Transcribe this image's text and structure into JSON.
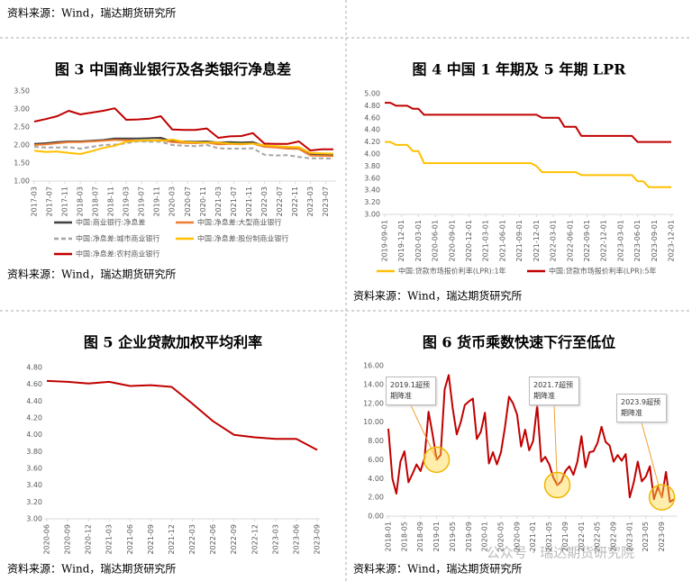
{
  "header_source": "资料来源：Wind，瑞达期货研究所",
  "watermark": "公众号 · 瑞达期货研究院",
  "chart_data": [
    {
      "type": "line",
      "title": "图 3 中国商业银行及各类银行净息差",
      "source": "资料来源：Wind，瑞达期货研究所",
      "x": [
        "2017-03",
        "2017-06",
        "2017-09",
        "2017-12",
        "2018-03",
        "2018-06",
        "2018-09",
        "2018-12",
        "2019-03",
        "2019-06",
        "2019-09",
        "2019-12",
        "2020-03",
        "2020-06",
        "2020-09",
        "2020-12",
        "2021-03",
        "2021-06",
        "2021-09",
        "2021-12",
        "2022-03",
        "2022-06",
        "2022-09",
        "2022-12",
        "2023-03",
        "2023-06",
        "2023-09"
      ],
      "xticks": [
        "2017-03",
        "2017-07",
        "2017-11",
        "2018-03",
        "2018-07",
        "2018-11",
        "2019-03",
        "2019-07",
        "2019-11",
        "2020-03",
        "2020-07",
        "2020-11",
        "2021-03",
        "2021-07",
        "2021-11",
        "2022-03",
        "2022-07",
        "2022-11",
        "2023-03",
        "2023-07"
      ],
      "ylim": [
        1.0,
        3.5
      ],
      "yticks": [
        {
          "value": 1.0,
          "label": "1.00"
        },
        {
          "value": 1.5,
          "label": "1.50"
        },
        {
          "value": 2.0,
          "label": "2.00"
        },
        {
          "value": 2.5,
          "label": "2.50"
        },
        {
          "value": 3.0,
          "label": "3.00"
        },
        {
          "value": 3.5,
          "label": "3.50"
        }
      ],
      "grid": false,
      "series": [
        {
          "name": "中国:商业银行:净息差",
          "color": "#404040",
          "dashed": false,
          "values": [
            2.03,
            2.05,
            2.08,
            2.1,
            2.1,
            2.12,
            2.14,
            2.18,
            2.18,
            2.18,
            2.19,
            2.2,
            2.1,
            2.1,
            2.09,
            2.1,
            2.07,
            2.08,
            2.07,
            2.08,
            1.97,
            1.94,
            1.91,
            1.91,
            1.74,
            1.74,
            1.73
          ]
        },
        {
          "name": "中国:净息差:大型商业银行",
          "color": "#ed7d31",
          "dashed": false,
          "values": [
            2.0,
            2.02,
            2.05,
            2.08,
            2.08,
            2.1,
            2.12,
            2.14,
            2.13,
            2.12,
            2.12,
            2.14,
            2.08,
            2.06,
            2.05,
            2.07,
            2.02,
            2.03,
            2.02,
            2.04,
            1.95,
            1.93,
            1.9,
            1.89,
            1.71,
            1.7,
            1.69
          ]
        },
        {
          "name": "中国:净息差:城市商业银行",
          "color": "#a5a5a5",
          "dashed": true,
          "values": [
            1.95,
            1.93,
            1.93,
            1.94,
            1.9,
            1.95,
            2.0,
            2.01,
            2.05,
            2.1,
            2.09,
            2.09,
            2.0,
            1.98,
            1.97,
            2.0,
            1.91,
            1.9,
            1.9,
            1.91,
            1.73,
            1.71,
            1.72,
            1.67,
            1.63,
            1.63,
            1.62
          ]
        },
        {
          "name": "中国:净息差:股份制商业银行",
          "color": "#ffc000",
          "dashed": false,
          "values": [
            1.84,
            1.81,
            1.82,
            1.78,
            1.75,
            1.83,
            1.92,
            1.98,
            2.09,
            2.12,
            2.13,
            2.12,
            2.15,
            2.09,
            2.07,
            2.07,
            2.07,
            2.04,
            2.03,
            2.04,
            1.99,
            1.97,
            1.95,
            1.94,
            1.78,
            1.77,
            1.76
          ]
        },
        {
          "name": "中国:净息差:农村商业银行",
          "color": "#c00000",
          "dashed": false,
          "values": [
            2.65,
            2.72,
            2.8,
            2.95,
            2.85,
            2.9,
            2.95,
            3.02,
            2.7,
            2.71,
            2.73,
            2.8,
            2.43,
            2.42,
            2.42,
            2.46,
            2.2,
            2.24,
            2.25,
            2.33,
            2.04,
            2.03,
            2.03,
            2.1,
            1.85,
            1.88,
            1.88
          ]
        }
      ]
    },
    {
      "type": "line",
      "title": "图 4 中国 1 年期及 5 年期 LPR",
      "source": "资料来源：Wind，瑞达期货研究所",
      "x": [
        "2019-09-01",
        "2019-10-01",
        "2019-11-01",
        "2019-12-01",
        "2020-01-01",
        "2020-02-01",
        "2020-03-01",
        "2020-04-01",
        "2020-05-01",
        "2020-06-01",
        "2020-07-01",
        "2020-08-01",
        "2020-09-01",
        "2020-10-01",
        "2020-11-01",
        "2020-12-01",
        "2021-01-01",
        "2021-02-01",
        "2021-03-01",
        "2021-04-01",
        "2021-05-01",
        "2021-06-01",
        "2021-07-01",
        "2021-08-01",
        "2021-09-01",
        "2021-10-01",
        "2021-11-01",
        "2021-12-01",
        "2022-01-01",
        "2022-02-01",
        "2022-03-01",
        "2022-04-01",
        "2022-05-01",
        "2022-06-01",
        "2022-07-01",
        "2022-08-01",
        "2022-09-01",
        "2022-10-01",
        "2022-11-01",
        "2022-12-01",
        "2023-01-01",
        "2023-02-01",
        "2023-03-01",
        "2023-04-01",
        "2023-05-01",
        "2023-06-01",
        "2023-07-01",
        "2023-08-01",
        "2023-09-01",
        "2023-10-01",
        "2023-11-01",
        "2023-12-01"
      ],
      "xticks": [
        "2019-09-01",
        "2019-12-01",
        "2020-03-01",
        "2020-06-01",
        "2020-09-01",
        "2020-12-01",
        "2021-03-01",
        "2021-06-01",
        "2021-09-01",
        "2021-12-01",
        "2022-03-01",
        "2022-06-01",
        "2022-09-01",
        "2022-12-01",
        "2023-03-01",
        "2023-06-01",
        "2023-09-01",
        "2023-12-01"
      ],
      "ylim": [
        3.0,
        5.0
      ],
      "yticks": [
        {
          "value": 3.0,
          "label": "3.00"
        },
        {
          "value": 3.2,
          "label": "3.20"
        },
        {
          "value": 3.4,
          "label": "3.40"
        },
        {
          "value": 3.6,
          "label": "3.60"
        },
        {
          "value": 3.8,
          "label": "3.80"
        },
        {
          "value": 4.0,
          "label": "4.00"
        },
        {
          "value": 4.2,
          "label": "4.20"
        },
        {
          "value": 4.4,
          "label": "4.40"
        },
        {
          "value": 4.6,
          "label": "4.60"
        },
        {
          "value": 4.8,
          "label": "4.80"
        },
        {
          "value": 5.0,
          "label": "5.00"
        }
      ],
      "grid": false,
      "series": [
        {
          "name": "中国:贷款市场报价利率(LPR):1年",
          "color": "#ffc000",
          "dashed": false,
          "values": [
            4.2,
            4.2,
            4.15,
            4.15,
            4.15,
            4.05,
            4.05,
            3.85,
            3.85,
            3.85,
            3.85,
            3.85,
            3.85,
            3.85,
            3.85,
            3.85,
            3.85,
            3.85,
            3.85,
            3.85,
            3.85,
            3.85,
            3.85,
            3.85,
            3.85,
            3.85,
            3.85,
            3.8,
            3.7,
            3.7,
            3.7,
            3.7,
            3.7,
            3.7,
            3.7,
            3.65,
            3.65,
            3.65,
            3.65,
            3.65,
            3.65,
            3.65,
            3.65,
            3.65,
            3.65,
            3.55,
            3.55,
            3.45,
            3.45,
            3.45,
            3.45,
            3.45
          ]
        },
        {
          "name": "中国:贷款市场报价利率(LPR):5年",
          "color": "#c00000",
          "dashed": false,
          "values": [
            4.85,
            4.85,
            4.8,
            4.8,
            4.8,
            4.75,
            4.75,
            4.65,
            4.65,
            4.65,
            4.65,
            4.65,
            4.65,
            4.65,
            4.65,
            4.65,
            4.65,
            4.65,
            4.65,
            4.65,
            4.65,
            4.65,
            4.65,
            4.65,
            4.65,
            4.65,
            4.65,
            4.65,
            4.6,
            4.6,
            4.6,
            4.6,
            4.45,
            4.45,
            4.45,
            4.3,
            4.3,
            4.3,
            4.3,
            4.3,
            4.3,
            4.3,
            4.3,
            4.3,
            4.3,
            4.2,
            4.2,
            4.2,
            4.2,
            4.2,
            4.2,
            4.2
          ]
        }
      ]
    },
    {
      "type": "line",
      "title": "图 5 企业贷款加权平均利率",
      "source": "资料来源：Wind，瑞达期货研究所",
      "categories": [
        "2020-06",
        "2020-09",
        "2020-12",
        "2021-03",
        "2021-06",
        "2021-09",
        "2021-12",
        "2022-03",
        "2022-06",
        "2022-09",
        "2022-12",
        "2023-03",
        "2023-06",
        "2023-09"
      ],
      "ylim": [
        3.0,
        4.8
      ],
      "yticks": [
        {
          "value": 3.0,
          "label": "3.00"
        },
        {
          "value": 3.2,
          "label": "3.20"
        },
        {
          "value": 3.4,
          "label": "3.40"
        },
        {
          "value": 3.6,
          "label": "3.60"
        },
        {
          "value": 3.8,
          "label": "3.80"
        },
        {
          "value": 4.0,
          "label": "4.00"
        },
        {
          "value": 4.2,
          "label": "4.20"
        },
        {
          "value": 4.4,
          "label": "4.40"
        },
        {
          "value": 4.6,
          "label": "4.60"
        },
        {
          "value": 4.8,
          "label": "4.80"
        }
      ],
      "grid": false,
      "series": [
        {
          "color": "#c00000",
          "dashed": false,
          "values": [
            4.64,
            4.63,
            4.61,
            4.63,
            4.58,
            4.59,
            4.57,
            4.37,
            4.16,
            4.0,
            3.97,
            3.95,
            3.95,
            3.82
          ]
        }
      ]
    },
    {
      "type": "line",
      "title": "图 6 货币乘数快速下行至低位",
      "source": "资料来源：Wind，瑞达期货研究所",
      "x": [
        "2018-01",
        "2018-02",
        "2018-03",
        "2018-04",
        "2018-05",
        "2018-06",
        "2018-07",
        "2018-08",
        "2018-09",
        "2018-10",
        "2018-11",
        "2018-12",
        "2019-01",
        "2019-02",
        "2019-03",
        "2019-04",
        "2019-05",
        "2019-06",
        "2019-07",
        "2019-08",
        "2019-09",
        "2019-10",
        "2019-11",
        "2019-12",
        "2020-01",
        "2020-02",
        "2020-03",
        "2020-04",
        "2020-05",
        "2020-06",
        "2020-07",
        "2020-08",
        "2020-09",
        "2020-10",
        "2020-11",
        "2020-12",
        "2021-01",
        "2021-02",
        "2021-03",
        "2021-04",
        "2021-05",
        "2021-06",
        "2021-07",
        "2021-08",
        "2021-09",
        "2021-10",
        "2021-11",
        "2021-12",
        "2022-01",
        "2022-02",
        "2022-03",
        "2022-04",
        "2022-05",
        "2022-06",
        "2022-07",
        "2022-08",
        "2022-09",
        "2022-10",
        "2022-11",
        "2022-12",
        "2023-01",
        "2023-02",
        "2023-03",
        "2023-04",
        "2023-05",
        "2023-06",
        "2023-07",
        "2023-08",
        "2023-09",
        "2023-10",
        "2023-11",
        "2023-12"
      ],
      "xticks": [
        "2018-01",
        "2018-05",
        "2018-09",
        "2019-01",
        "2019-05",
        "2019-09",
        "2020-01",
        "2020-05",
        "2020-09",
        "2021-01",
        "2021-05",
        "2021-09",
        "2022-01",
        "2022-05",
        "2022-09",
        "2023-01",
        "2023-05",
        "2023-09"
      ],
      "ylim": [
        0,
        16
      ],
      "yticks": [
        {
          "value": 0,
          "label": "0.00"
        },
        {
          "value": 2,
          "label": "2.00"
        },
        {
          "value": 4,
          "label": "4.00"
        },
        {
          "value": 6,
          "label": "6.00"
        },
        {
          "value": 8,
          "label": "8.00"
        },
        {
          "value": 10,
          "label": "10.00"
        },
        {
          "value": 12,
          "label": "12.00"
        },
        {
          "value": 14,
          "label": "14.00"
        },
        {
          "value": 16,
          "label": "16.00"
        }
      ],
      "grid": false,
      "series": [
        {
          "color": "#c00000",
          "dashed": false,
          "values": [
            9.3,
            4.0,
            2.4,
            5.8,
            6.9,
            3.6,
            4.5,
            5.5,
            4.8,
            6.2,
            11.1,
            8.7,
            6.0,
            6.5,
            13.5,
            15.0,
            11.5,
            8.7,
            10.0,
            11.8,
            12.2,
            12.5,
            8.2,
            9.0,
            11.0,
            5.6,
            6.8,
            5.5,
            6.8,
            9.5,
            12.7,
            12.0,
            10.8,
            7.4,
            9.2,
            7.0,
            8.0,
            11.8,
            5.8,
            6.3,
            5.5,
            4.1,
            3.3,
            3.7,
            4.8,
            5.3,
            4.4,
            5.8,
            8.5,
            5.2,
            6.8,
            6.9,
            7.8,
            9.5,
            7.9,
            7.5,
            5.8,
            6.5,
            5.9,
            6.6,
            2.0,
            3.6,
            5.8,
            3.7,
            4.2,
            5.3,
            1.8,
            3.1,
            2.0,
            4.7,
            1.5,
            1.8
          ]
        }
      ],
      "annotations": [
        {
          "text": "2019.1超预期降准",
          "x": "2019-01"
        },
        {
          "text": "2021.7超预期降准",
          "x": "2021-07"
        },
        {
          "text": "2023.9超预期降准",
          "x": "2023-09"
        }
      ]
    }
  ]
}
